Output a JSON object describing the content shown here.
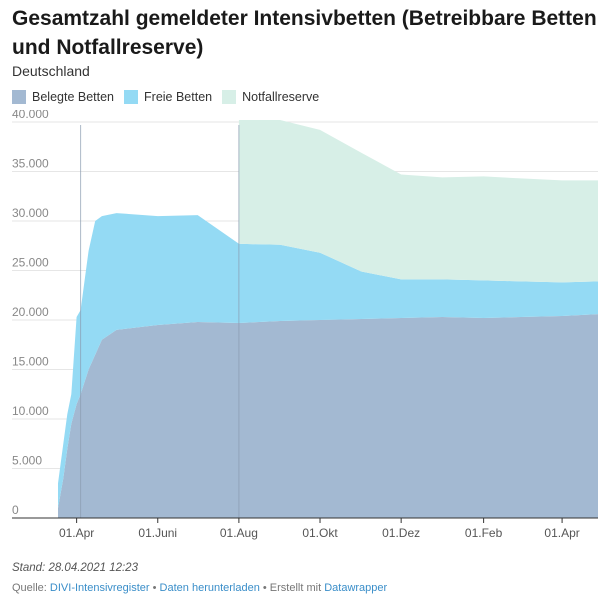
{
  "title": "Gesamtzahl gemeldeter Intensivbetten (Betreibbare Betten und Notfallreserve)",
  "subtitle": "Deutschland",
  "legend": [
    {
      "label": "Belegte Betten",
      "color": "#a3b9d2"
    },
    {
      "label": "Freie Betten",
      "color": "#94daf4"
    },
    {
      "label": "Notfallreserve",
      "color": "#d7efe7"
    }
  ],
  "footer": {
    "stand": "Stand: 28.04.2021 12:23",
    "source_prefix": "Quelle: ",
    "source_link": "DIVI-Intensivregister",
    "sep1": " • ",
    "download_link": "Daten herunterladen",
    "sep2": " • Erstellt mit ",
    "tool_link": "Datawrapper"
  },
  "chart_data": {
    "type": "area",
    "stacked": true,
    "ylim": [
      0,
      40000
    ],
    "xlim": [
      "2020-03-18",
      "2021-04-28"
    ],
    "y_ticks": [
      0,
      5000,
      10000,
      15000,
      20000,
      25000,
      30000,
      35000,
      40000
    ],
    "y_tick_labels": [
      "0",
      "5.000",
      "10.000",
      "15.000",
      "20.000",
      "25.000",
      "30.000",
      "35.000",
      "40.000"
    ],
    "x_ticks": [
      "2020-04-01",
      "2020-06-01",
      "2020-08-01",
      "2020-10-01",
      "2020-12-01",
      "2021-02-01",
      "2021-04-01"
    ],
    "x_tick_labels": [
      "01.Apr",
      "01.Juni",
      "01.Aug",
      "01.Okt",
      "01.Dez",
      "01.Feb",
      "01.Apr"
    ],
    "grid": true,
    "series": [
      {
        "name": "Belegte Betten",
        "color": "#a3b9d2",
        "x": [
          "2020-03-18",
          "2020-03-22",
          "2020-03-25",
          "2020-03-28",
          "2020-04-01",
          "2020-04-04",
          "2020-04-10",
          "2020-04-15",
          "2020-04-20",
          "2020-05-01",
          "2020-06-01",
          "2020-07-01",
          "2020-08-01",
          "2020-09-01",
          "2020-10-01",
          "2020-11-01",
          "2020-12-01",
          "2021-01-01",
          "2021-02-01",
          "2021-03-01",
          "2021-04-01",
          "2021-04-28"
        ],
        "y": [
          1000,
          4000,
          7000,
          9500,
          11500,
          12500,
          15000,
          16500,
          18000,
          19000,
          19500,
          19800,
          19700,
          19900,
          20000,
          20100,
          20200,
          20300,
          20200,
          20300,
          20400,
          20600
        ]
      },
      {
        "name": "Freie Betten",
        "color": "#94daf4",
        "x": [
          "2020-03-18",
          "2020-03-22",
          "2020-03-25",
          "2020-03-28",
          "2020-04-01",
          "2020-04-04",
          "2020-04-10",
          "2020-04-15",
          "2020-04-20",
          "2020-05-01",
          "2020-06-01",
          "2020-07-01",
          "2020-08-01",
          "2020-09-01",
          "2020-10-01",
          "2020-11-01",
          "2020-12-01",
          "2021-01-01",
          "2021-02-01",
          "2021-03-01",
          "2021-04-01",
          "2021-04-28"
        ],
        "y": [
          2500,
          3500,
          3500,
          3000,
          8800,
          8500,
          12000,
          13500,
          12500,
          11800,
          11000,
          10800,
          8000,
          7700,
          6800,
          4800,
          3900,
          3800,
          3800,
          3600,
          3400,
          3300
        ]
      },
      {
        "name": "Notfallreserve",
        "color": "#d7efe7",
        "x": [
          "2020-08-01",
          "2020-09-01",
          "2020-10-01",
          "2020-11-01",
          "2020-12-01",
          "2021-01-01",
          "2021-02-01",
          "2021-03-01",
          "2021-04-01",
          "2021-04-28"
        ],
        "y": [
          12500,
          12600,
          12400,
          12000,
          10600,
          10300,
          10500,
          10400,
          10300,
          10200
        ]
      }
    ],
    "markers": [
      "2020-04-04",
      "2020-08-01"
    ]
  }
}
